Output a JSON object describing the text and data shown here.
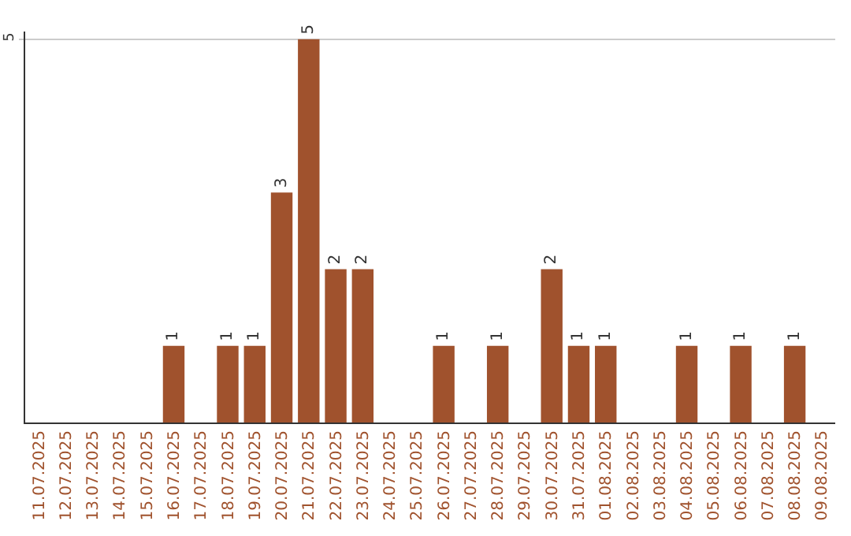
{
  "chart_data": {
    "type": "bar",
    "categories": [
      "11.07.2025",
      "12.07.2025",
      "13.07.2025",
      "14.07.2025",
      "15.07.2025",
      "16.07.2025",
      "17.07.2025",
      "18.07.2025",
      "19.07.2025",
      "20.07.2025",
      "21.07.2025",
      "22.07.2025",
      "23.07.2025",
      "24.07.2025",
      "25.07.2025",
      "26.07.2025",
      "27.07.2025",
      "28.07.2025",
      "29.07.2025",
      "30.07.2025",
      "31.07.2025",
      "01.08.2025",
      "02.08.2025",
      "03.08.2025",
      "04.08.2025",
      "05.08.2025",
      "06.08.2025",
      "07.08.2025",
      "08.08.2025",
      "09.08.2025"
    ],
    "values": [
      null,
      null,
      null,
      null,
      null,
      1,
      null,
      1,
      1,
      3,
      5,
      2,
      2,
      null,
      null,
      1,
      null,
      1,
      null,
      2,
      1,
      1,
      null,
      null,
      1,
      null,
      1,
      null,
      1,
      null
    ],
    "color": "#a0522d",
    "ylim": [
      0,
      5.1
    ],
    "yticks": [
      5
    ],
    "grid": "y",
    "data_labels": true,
    "legend": false
  }
}
